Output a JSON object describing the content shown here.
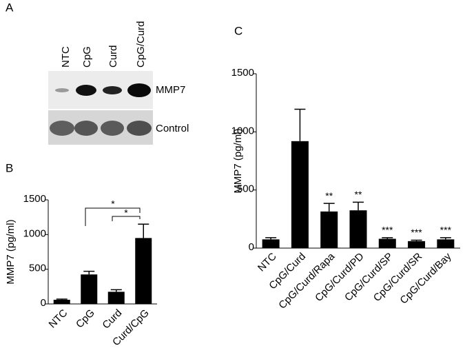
{
  "blot": {
    "panel": "A",
    "lanes": [
      "NTC",
      "CpG",
      "Curd",
      "CpG/Curd"
    ],
    "rows": [
      "MMP7",
      "Control"
    ]
  },
  "chart_data": [
    {
      "type": "bar",
      "panel": "B",
      "ylabel": "MMP7 (pg/ml)",
      "categories": [
        "NTC",
        "CpG",
        "Curd",
        "Curd/CpG"
      ],
      "values": [
        60,
        425,
        175,
        950
      ],
      "errors": [
        10,
        45,
        30,
        200
      ],
      "color": "#000000",
      "ylim": [
        0,
        1500
      ],
      "yticks": [
        0,
        500,
        1000,
        1500
      ],
      "annotations": [
        "*",
        "*"
      ]
    },
    {
      "type": "bar",
      "panel": "C",
      "ylabel": "MMP7 (pg/ml)",
      "categories": [
        "NTC",
        "CpG/Curd",
        "CpG/Curd/Rapa",
        "CpG/Curd/PD",
        "CpG/Curd/SP",
        "CpG/Curd/SR",
        "CpG/Curd/Bay"
      ],
      "values": [
        75,
        920,
        315,
        325,
        80,
        60,
        75
      ],
      "errors": [
        15,
        275,
        70,
        70,
        10,
        8,
        15
      ],
      "color": "#000000",
      "ylim": [
        0,
        1500
      ],
      "yticks": [
        0,
        500,
        1000,
        1500
      ],
      "annotations": [
        null,
        null,
        "**",
        "**",
        "***",
        "***",
        "***"
      ]
    }
  ]
}
